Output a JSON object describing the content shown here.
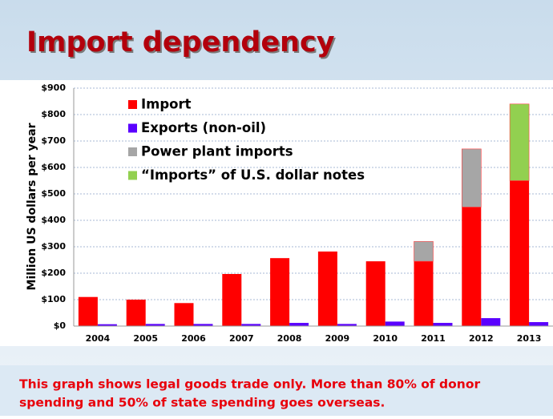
{
  "chart_data": {
    "type": "bar",
    "title": "Import dependency",
    "y_label": "Million US dollars per year",
    "categories": [
      "2004",
      "2005",
      "2006",
      "2007",
      "2008",
      "2009",
      "2010",
      "2011",
      "2012",
      "2013"
    ],
    "series": [
      {
        "name": "Import",
        "color": "#ff0000",
        "stack": "a",
        "values": [
          110,
          100,
          87,
          197,
          257,
          282,
          245,
          245,
          450,
          550
        ]
      },
      {
        "name": "Exports (non-oil)",
        "color": "#5a00ff",
        "stack": "b",
        "values": [
          7,
          8,
          8,
          8,
          12,
          8,
          17,
          12,
          30,
          15
        ]
      },
      {
        "name": "Power plant imports",
        "color": "#a6a6a6",
        "stack": "a",
        "values": [
          0,
          0,
          0,
          0,
          0,
          0,
          0,
          75,
          220,
          0
        ]
      },
      {
        "name": "“Imports” of U.S. dollar notes",
        "color": "#92d050",
        "stack": "a",
        "values": [
          0,
          0,
          0,
          0,
          0,
          0,
          0,
          0,
          0,
          290
        ]
      }
    ],
    "ylim": [
      0,
      900
    ],
    "yticks": [
      {
        "value": 0,
        "label": "$0"
      },
      {
        "value": 100,
        "label": "$100"
      },
      {
        "value": 200,
        "label": "$200"
      },
      {
        "value": 300,
        "label": "$300"
      },
      {
        "value": 400,
        "label": "$400"
      },
      {
        "value": 500,
        "label": "$500"
      },
      {
        "value": 600,
        "label": "$600"
      },
      {
        "value": 700,
        "label": "$700"
      },
      {
        "value": 800,
        "label": "$800"
      },
      {
        "value": 900,
        "label": "$900"
      }
    ],
    "grid": true,
    "note_lines": [
      "This graph shows legal goods trade only.   More than 80% of donor",
      "spending and 50% of state spending goes overseas."
    ]
  }
}
